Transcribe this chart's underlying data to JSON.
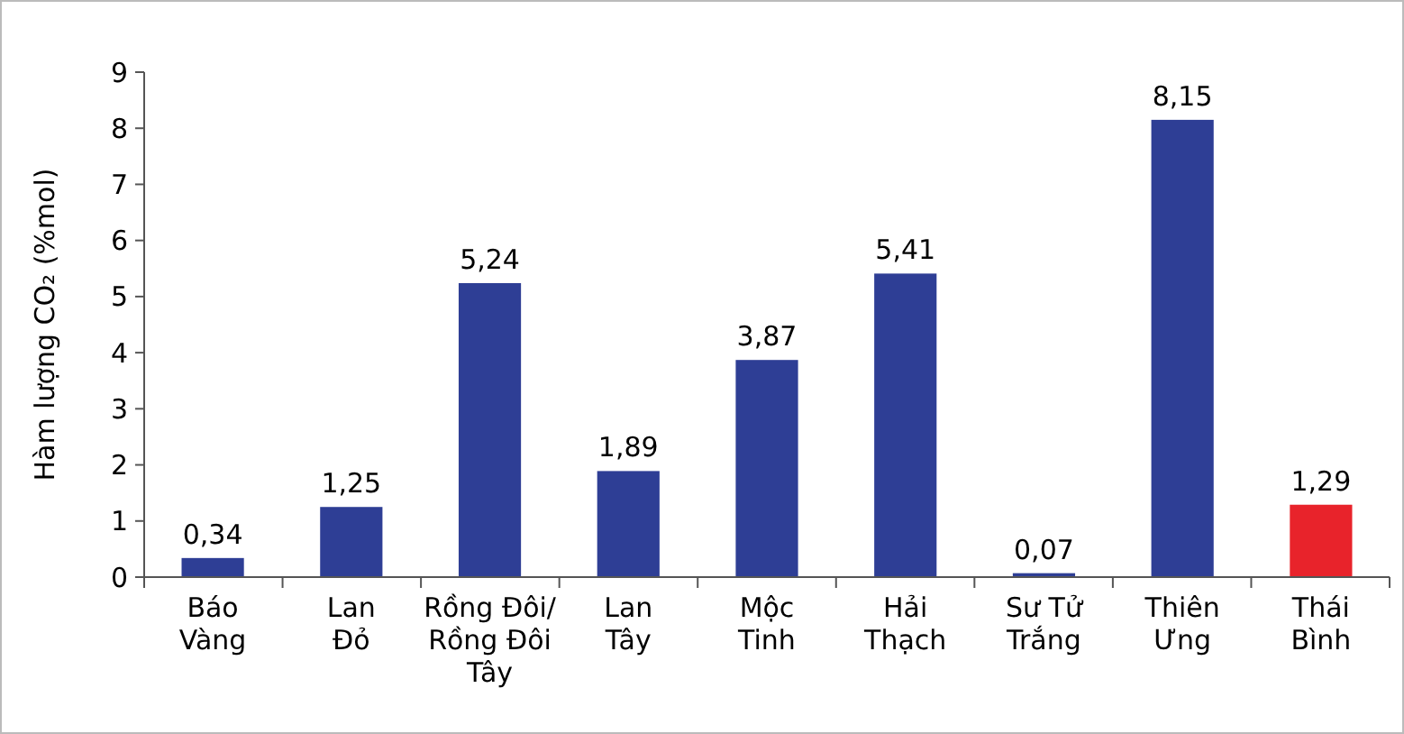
{
  "chart_data": {
    "type": "bar",
    "ylabel": "Hàm lượng CO₂ (%mol)",
    "categories": [
      "Báo\nVàng",
      "Lan\nĐỏ",
      "Rồng Đôi/\nRồng Đôi\nTây",
      "Lan\nTây",
      "Mộc\nTinh",
      "Hải\nThạch",
      "Sư Tử\nTrắng",
      "Thiên\nƯng",
      "Thái\nBình"
    ],
    "values": [
      0.34,
      1.25,
      5.24,
      1.89,
      3.87,
      5.41,
      0.07,
      8.15,
      1.29
    ],
    "value_labels": [
      "0,34",
      "1,25",
      "5,24",
      "1,89",
      "3,87",
      "5,41",
      "0,07",
      "8,15",
      "1,29"
    ],
    "colors": [
      "#2e3e95",
      "#2e3e95",
      "#2e3e95",
      "#2e3e95",
      "#2e3e95",
      "#2e3e95",
      "#2e3e95",
      "#2e3e95",
      "#e8232b"
    ],
    "ylim": [
      0,
      9
    ],
    "yticks": [
      0,
      1,
      2,
      3,
      4,
      5,
      6,
      7,
      8,
      9
    ],
    "grid": false
  }
}
